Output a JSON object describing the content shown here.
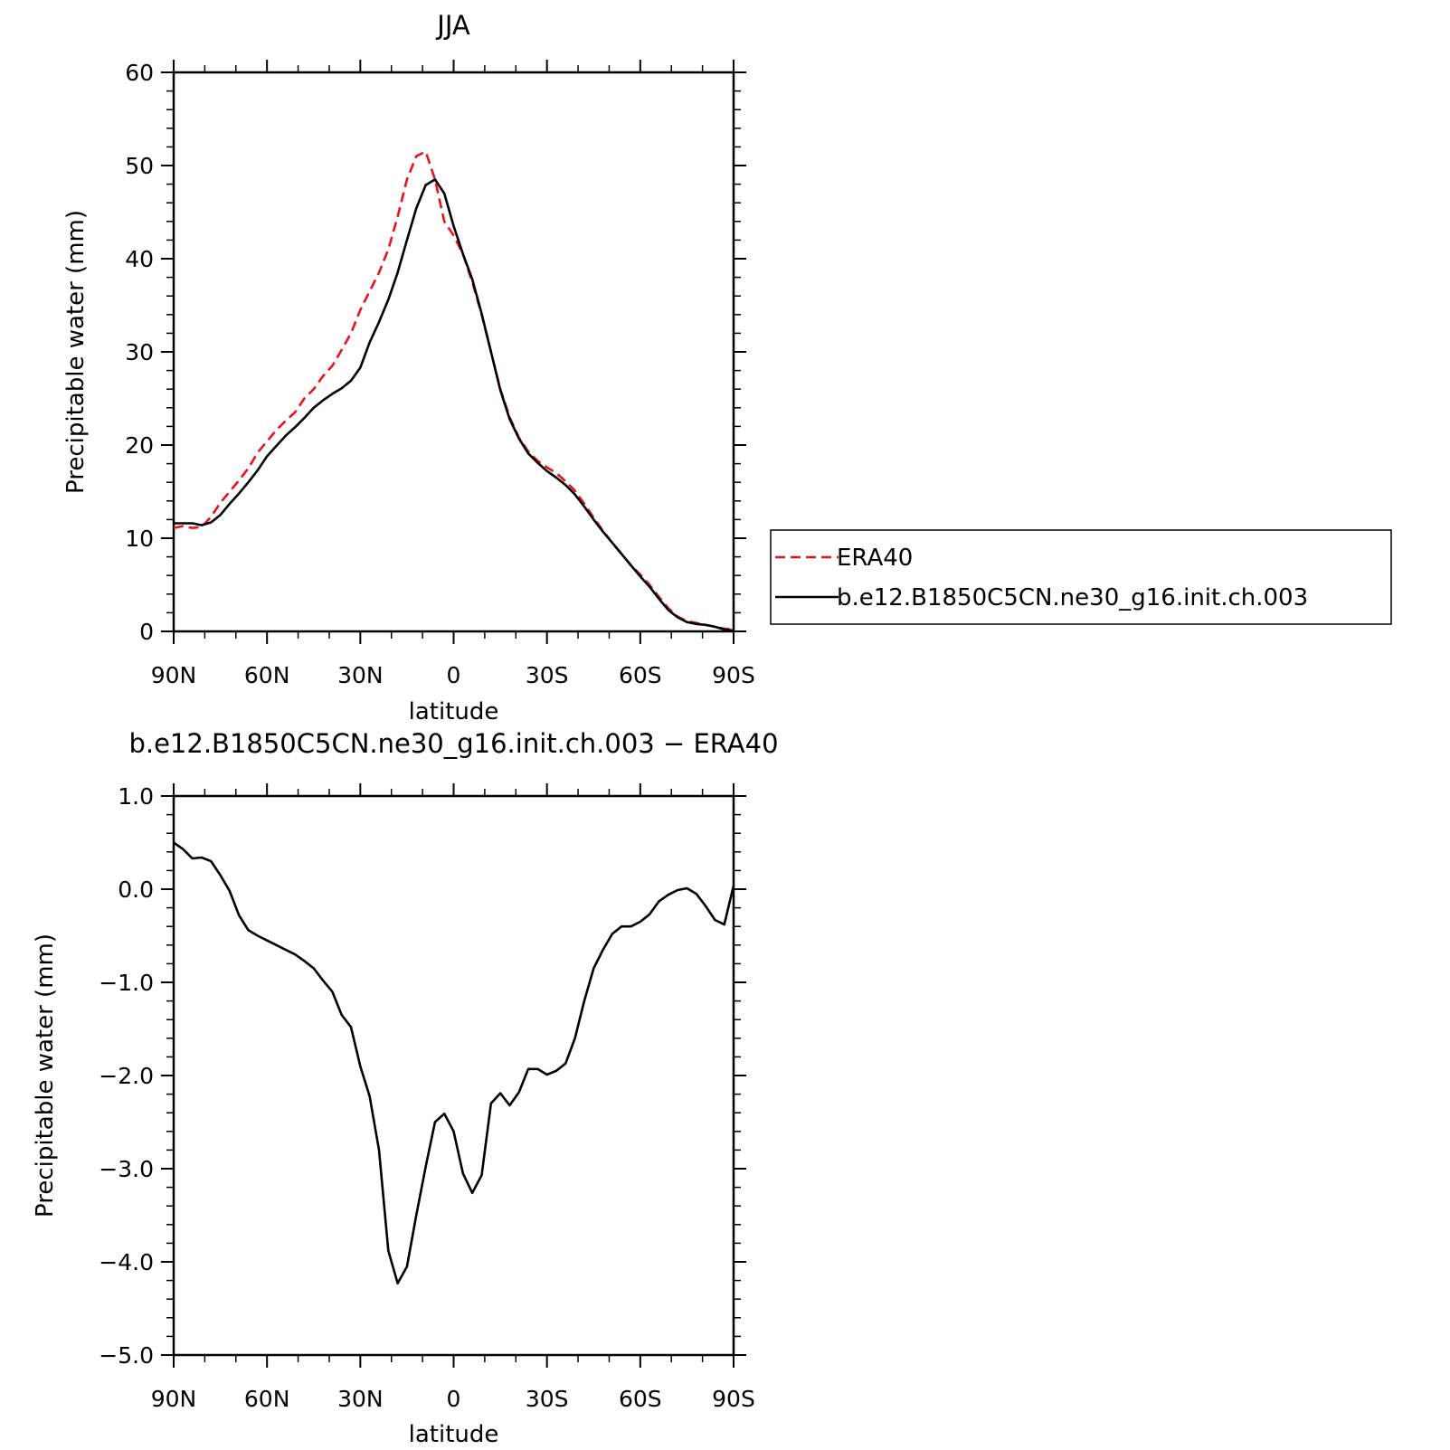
{
  "chart_data": [
    {
      "type": "line",
      "title": "JJA",
      "xlabel": "latitude",
      "ylabel": "Precipitable water (mm)",
      "xlim": [
        90,
        -90
      ],
      "ylim": [
        0,
        60
      ],
      "x_ticks": [
        90,
        60,
        30,
        0,
        -30,
        -60,
        -90
      ],
      "x_tick_labels": [
        "90N",
        "60N",
        "30N",
        "0",
        "30S",
        "60S",
        "90S"
      ],
      "y_ticks": [
        0,
        10,
        20,
        30,
        40,
        50,
        60
      ],
      "y_tick_labels": [
        "0",
        "10",
        "20",
        "30",
        "40",
        "50",
        "60"
      ],
      "grid": false,
      "legend_position": "right-outside",
      "series": [
        {
          "name": "ERA40",
          "color": "#e8141b",
          "dash": "dashed",
          "x": [
            90,
            87,
            84,
            81,
            78,
            75,
            72,
            69,
            66,
            63,
            60,
            57,
            54,
            51,
            48,
            45,
            42,
            39,
            36,
            33,
            30,
            27,
            24,
            21,
            18,
            15,
            12,
            9,
            6,
            3,
            0,
            -3,
            -6,
            -9,
            -12,
            -15,
            -18,
            -21,
            -24,
            -27,
            -30,
            -33,
            -36,
            -39,
            -42,
            -45,
            -48,
            -51,
            -54,
            -57,
            -60,
            -63,
            -66,
            -69,
            -72,
            -75,
            -78,
            -81,
            -84,
            -87,
            -90
          ],
          "y": [
            11.1,
            11.3,
            11.1,
            11.2,
            12.3,
            13.8,
            15.0,
            16.2,
            17.5,
            19.2,
            20.4,
            21.6,
            22.6,
            23.5,
            25.0,
            26.0,
            27.4,
            28.5,
            30.2,
            32.0,
            34.5,
            36.5,
            38.5,
            41.0,
            44.5,
            48.5,
            51.0,
            51.5,
            48.5,
            44.0,
            42.5,
            40.5,
            37.5,
            34.0,
            30.0,
            26.0,
            23.0,
            20.8,
            19.3,
            18.3,
            17.6,
            17.0,
            16.1,
            15.1,
            13.7,
            12.2,
            10.8,
            9.5,
            8.3,
            7.1,
            6.1,
            5.0,
            3.7,
            2.5,
            1.6,
            1.1,
            0.9,
            0.7,
            0.5,
            0.3,
            0.2
          ]
        },
        {
          "name": "b.e12.B1850C5CN.ne30_g16.init.ch.003",
          "color": "#000000",
          "dash": "solid",
          "x": [
            90,
            87,
            84,
            81,
            78,
            75,
            72,
            69,
            66,
            63,
            60,
            57,
            54,
            51,
            48,
            45,
            42,
            39,
            36,
            33,
            30,
            27,
            24,
            21,
            18,
            15,
            12,
            9,
            6,
            3,
            0,
            -3,
            -6,
            -9,
            -12,
            -15,
            -18,
            -21,
            -24,
            -27,
            -30,
            -33,
            -36,
            -39,
            -42,
            -45,
            -48,
            -51,
            -54,
            -57,
            -60,
            -63,
            -66,
            -69,
            -72,
            -75,
            -78,
            -81,
            -84,
            -87,
            -90
          ],
          "y": [
            11.6,
            11.6,
            11.6,
            11.4,
            11.7,
            12.5,
            13.7,
            14.8,
            16.0,
            17.3,
            18.8,
            19.9,
            21.0,
            21.9,
            22.9,
            24.0,
            24.8,
            25.5,
            26.1,
            26.9,
            28.3,
            31.0,
            33.2,
            35.6,
            38.5,
            42.0,
            45.4,
            47.9,
            48.5,
            47.0,
            43.5,
            40.5,
            37.8,
            34.1,
            30.0,
            25.9,
            22.8,
            20.7,
            19.1,
            18.1,
            17.2,
            16.5,
            15.7,
            14.7,
            13.4,
            12.0,
            10.7,
            9.5,
            8.3,
            7.1,
            5.9,
            4.8,
            3.5,
            2.3,
            1.5,
            1.0,
            0.8,
            0.7,
            0.5,
            0.2,
            0.1
          ]
        }
      ]
    },
    {
      "type": "line",
      "title": "b.e12.B1850C5CN.ne30_g16.init.ch.003 − ERA40",
      "xlabel": "latitude",
      "ylabel": "Precipitable water (mm)",
      "xlim": [
        90,
        -90
      ],
      "ylim": [
        -5,
        1
      ],
      "x_ticks": [
        90,
        60,
        30,
        0,
        -30,
        -60,
        -90
      ],
      "x_tick_labels": [
        "90N",
        "60N",
        "30N",
        "0",
        "30S",
        "60S",
        "90S"
      ],
      "y_ticks": [
        1,
        0,
        -1,
        -2,
        -3,
        -4,
        -5
      ],
      "y_tick_labels": [
        "1.0",
        "0.0",
        "−1.0",
        "−2.0",
        "−3.0",
        "−4.0",
        "−5.0"
      ],
      "grid": false,
      "series": [
        {
          "color": "#000000",
          "dash": "solid",
          "x": [
            90,
            87,
            84,
            81,
            78,
            75,
            72,
            69,
            66,
            63,
            60,
            57,
            54,
            51,
            48,
            45,
            42,
            39,
            36,
            33,
            30,
            27,
            24,
            21,
            18,
            15,
            12,
            9,
            6,
            3,
            0,
            -3,
            -6,
            -9,
            -12,
            -15,
            -18,
            -21,
            -24,
            -27,
            -30,
            -33,
            -36,
            -39,
            -42,
            -45,
            -48,
            -51,
            -54,
            -57,
            -60,
            -63,
            -66,
            -69,
            -72,
            -75,
            -78,
            -81,
            -84,
            -87,
            -90
          ],
          "y": [
            0.5,
            0.43,
            0.33,
            0.34,
            0.3,
            0.15,
            -0.02,
            -0.28,
            -0.44,
            -0.5,
            -0.55,
            -0.6,
            -0.65,
            -0.7,
            -0.77,
            -0.85,
            -0.98,
            -1.1,
            -1.35,
            -1.48,
            -1.9,
            -2.22,
            -2.8,
            -3.88,
            -4.23,
            -4.05,
            -3.5,
            -2.98,
            -2.5,
            -2.41,
            -2.6,
            -3.05,
            -3.26,
            -3.07,
            -2.3,
            -2.19,
            -2.32,
            -2.18,
            -1.93,
            -1.93,
            -1.99,
            -1.95,
            -1.87,
            -1.6,
            -1.2,
            -0.85,
            -0.65,
            -0.48,
            -0.4,
            -0.4,
            -0.35,
            -0.27,
            -0.13,
            -0.06,
            -0.01,
            0.01,
            -0.05,
            -0.18,
            -0.33,
            -0.38,
            0.04
          ]
        }
      ]
    }
  ]
}
